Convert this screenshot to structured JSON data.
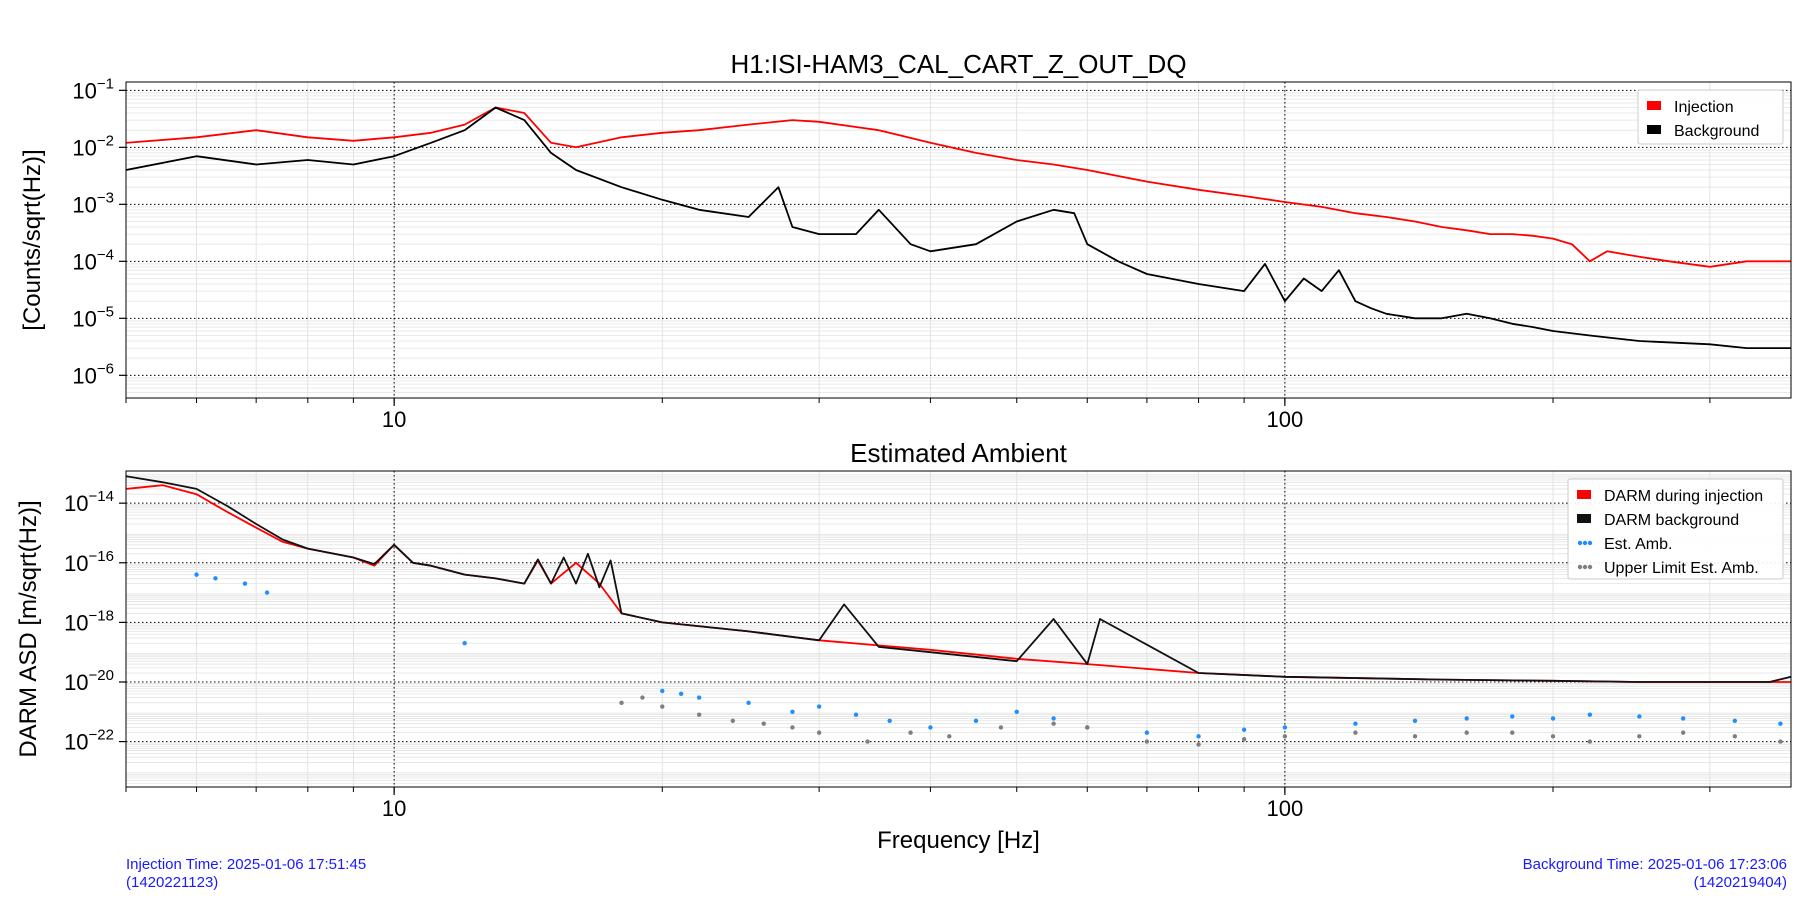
{
  "chart_data": [
    {
      "type": "line",
      "title": "H1:ISI-HAM3_CAL_CART_Z_OUT_DQ",
      "xlabel": "",
      "ylabel": "[Counts/sqrt(Hz)]",
      "xscale": "log",
      "yscale": "log",
      "xlim": [
        5,
        370
      ],
      "ylim": [
        4e-07,
        0.14
      ],
      "x_ticks": [
        {
          "value": 10,
          "label": "10"
        },
        {
          "value": 100,
          "label": "100"
        }
      ],
      "y_ticks": [
        {
          "value": 0.1,
          "base": "10",
          "exp": "−1"
        },
        {
          "value": 0.01,
          "base": "10",
          "exp": "−2"
        },
        {
          "value": 0.001,
          "base": "10",
          "exp": "−3"
        },
        {
          "value": 0.0001,
          "base": "10",
          "exp": "−4"
        },
        {
          "value": 1e-05,
          "base": "10",
          "exp": "−5"
        },
        {
          "value": 1e-06,
          "base": "10",
          "exp": "−6"
        }
      ],
      "grid": true,
      "legend_position": "top-right",
      "series": [
        {
          "name": "Injection",
          "color": "#ff0000",
          "x": [
            5,
            6,
            7,
            8,
            9,
            10,
            11,
            12,
            13,
            14,
            15,
            16,
            18,
            20,
            22,
            25,
            28,
            30,
            35,
            40,
            45,
            50,
            55,
            60,
            70,
            80,
            90,
            100,
            110,
            120,
            130,
            140,
            150,
            160,
            170,
            180,
            190,
            200,
            210,
            220,
            230,
            250,
            270,
            300,
            330,
            370
          ],
          "y": [
            0.012,
            0.015,
            0.02,
            0.015,
            0.013,
            0.015,
            0.018,
            0.025,
            0.05,
            0.04,
            0.012,
            0.01,
            0.015,
            0.018,
            0.02,
            0.025,
            0.03,
            0.028,
            0.02,
            0.012,
            0.008,
            0.006,
            0.005,
            0.004,
            0.0025,
            0.0018,
            0.0014,
            0.0011,
            0.0009,
            0.0007,
            0.0006,
            0.0005,
            0.0004,
            0.00035,
            0.0003,
            0.0003,
            0.00028,
            0.00025,
            0.0002,
            0.0001,
            0.00015,
            0.00012,
            0.0001,
            8e-05,
            0.0001,
            0.0001
          ]
        },
        {
          "name": "Background",
          "color": "#000000",
          "x": [
            5,
            6,
            7,
            8,
            9,
            10,
            11,
            12,
            13,
            14,
            15,
            16,
            18,
            20,
            22,
            25,
            27,
            28,
            30,
            33,
            35,
            38,
            40,
            45,
            50,
            55,
            58,
            60,
            65,
            70,
            80,
            90,
            95,
            100,
            105,
            110,
            115,
            120,
            125,
            130,
            140,
            150,
            160,
            170,
            180,
            190,
            200,
            220,
            250,
            300,
            330,
            370
          ],
          "y": [
            0.004,
            0.007,
            0.005,
            0.006,
            0.005,
            0.007,
            0.012,
            0.02,
            0.05,
            0.03,
            0.008,
            0.004,
            0.002,
            0.0012,
            0.0008,
            0.0006,
            0.002,
            0.0004,
            0.0003,
            0.0003,
            0.0008,
            0.0002,
            0.00015,
            0.0002,
            0.0005,
            0.0008,
            0.0007,
            0.0002,
            0.0001,
            6e-05,
            4e-05,
            3e-05,
            9e-05,
            2e-05,
            5e-05,
            3e-05,
            7e-05,
            2e-05,
            1.5e-05,
            1.2e-05,
            1e-05,
            1e-05,
            1.2e-05,
            1e-05,
            8e-06,
            7e-06,
            6e-06,
            5e-06,
            4e-06,
            3.5e-06,
            3e-06,
            3e-06
          ]
        }
      ]
    },
    {
      "type": "line",
      "title": "Estimated Ambient",
      "xlabel": "Frequency [Hz]",
      "ylabel": "DARM ASD [m/sqrt(Hz)]",
      "xscale": "log",
      "yscale": "log",
      "xlim": [
        5,
        370
      ],
      "ylim": [
        3e-24,
        1.2e-13
      ],
      "x_ticks": [
        {
          "value": 10,
          "label": "10"
        },
        {
          "value": 100,
          "label": "100"
        }
      ],
      "y_ticks": [
        {
          "value": 1e-14,
          "base": "10",
          "exp": "−14"
        },
        {
          "value": 1e-16,
          "base": "10",
          "exp": "−16"
        },
        {
          "value": 1e-18,
          "base": "10",
          "exp": "−18"
        },
        {
          "value": 1e-20,
          "base": "10",
          "exp": "−20"
        },
        {
          "value": 1e-22,
          "base": "10",
          "exp": "−22"
        }
      ],
      "grid": true,
      "legend_position": "top-right",
      "series": [
        {
          "name": "DARM during injection",
          "color": "#ff0000",
          "x": [
            5,
            5.5,
            6,
            6.5,
            7,
            7.5,
            8,
            9,
            9.5,
            10,
            10.5,
            11,
            12,
            13,
            14,
            14.5,
            15,
            16,
            17,
            18,
            20,
            25,
            30,
            40,
            50,
            60,
            80,
            100,
            150,
            200,
            250,
            300,
            370
          ],
          "y": [
            3e-14,
            4e-14,
            2e-14,
            5e-15,
            1.5e-15,
            5e-16,
            3e-16,
            1.5e-16,
            8e-17,
            4e-16,
            1e-16,
            8e-17,
            4e-17,
            3e-17,
            2e-17,
            1.2e-16,
            2e-17,
            1e-16,
            2e-17,
            2e-18,
            1e-18,
            5e-19,
            2.5e-19,
            1.2e-19,
            6e-20,
            4e-20,
            2e-20,
            1.5e-20,
            1.2e-20,
            1.1e-20,
            1e-20,
            1e-20,
            1e-20
          ]
        },
        {
          "name": "DARM background",
          "color": "#111111",
          "x": [
            5,
            5.5,
            6,
            6.5,
            7,
            7.5,
            8,
            9,
            9.5,
            10,
            10.5,
            11,
            12,
            13,
            14,
            14.5,
            15,
            15.5,
            16,
            16.5,
            17,
            17.5,
            18,
            20,
            25,
            30,
            32,
            35,
            40,
            50,
            55,
            60,
            62,
            80,
            100,
            150,
            200,
            250,
            300,
            350,
            370
          ],
          "y": [
            8e-14,
            5e-14,
            3e-14,
            8e-15,
            2e-15,
            6e-16,
            3e-16,
            1.5e-16,
            9e-17,
            4e-16,
            1e-16,
            8e-17,
            4e-17,
            3e-17,
            2e-17,
            1.3e-16,
            2e-17,
            1.5e-16,
            2e-17,
            2e-16,
            1.5e-17,
            1.2e-16,
            2e-18,
            1e-18,
            5e-19,
            2.5e-19,
            4e-18,
            1.5e-19,
            1e-19,
            5e-20,
            1.3e-18,
            4e-20,
            1.3e-18,
            2e-20,
            1.5e-20,
            1.2e-20,
            1.1e-20,
            1e-20,
            1e-20,
            1e-20,
            1.5e-20
          ]
        },
        {
          "name": "Est. Amb.",
          "color": "#1f8fff",
          "x": [
            6,
            6.3,
            6.8,
            7.2,
            12,
            20,
            21,
            22,
            25,
            28,
            30,
            33,
            36,
            40,
            45,
            50,
            55,
            60,
            70,
            80,
            90,
            100,
            120,
            140,
            160,
            180,
            200,
            220,
            250,
            280,
            320,
            360
          ],
          "y": [
            4e-17,
            3e-17,
            2e-17,
            1e-17,
            2e-19,
            5e-21,
            4e-21,
            3e-21,
            2e-21,
            1e-21,
            1.5e-21,
            8e-22,
            5e-22,
            3e-22,
            5e-22,
            1e-21,
            6e-22,
            3e-22,
            2e-22,
            1.5e-22,
            2.5e-22,
            3e-22,
            4e-22,
            5e-22,
            6e-22,
            7e-22,
            6e-22,
            8e-22,
            7e-22,
            6e-22,
            5e-22,
            4e-22
          ]
        },
        {
          "name": "Upper Limit Est. Amb.",
          "color": "#7f7f7f",
          "x": [
            18,
            19,
            20,
            22,
            24,
            26,
            28,
            30,
            34,
            38,
            42,
            48,
            55,
            60,
            70,
            80,
            90,
            100,
            120,
            140,
            160,
            180,
            200,
            220,
            250,
            280,
            320,
            360
          ],
          "y": [
            2e-21,
            3e-21,
            1.5e-21,
            8e-22,
            5e-22,
            4e-22,
            3e-22,
            2e-22,
            1e-22,
            2e-22,
            1.5e-22,
            3e-22,
            4e-22,
            3e-22,
            1e-22,
            8e-23,
            1.2e-22,
            1.5e-22,
            2e-22,
            1.5e-22,
            2e-22,
            2e-22,
            1.5e-22,
            1e-22,
            1.5e-22,
            2e-22,
            1.5e-22,
            1e-22
          ]
        }
      ]
    }
  ],
  "footer": {
    "injection_time": "Injection Time: 2025-01-06 17:51:45",
    "injection_gps": "(1420221123)",
    "background_time": "Background Time: 2025-01-06 17:23:06",
    "background_gps": "(1420219404)"
  }
}
